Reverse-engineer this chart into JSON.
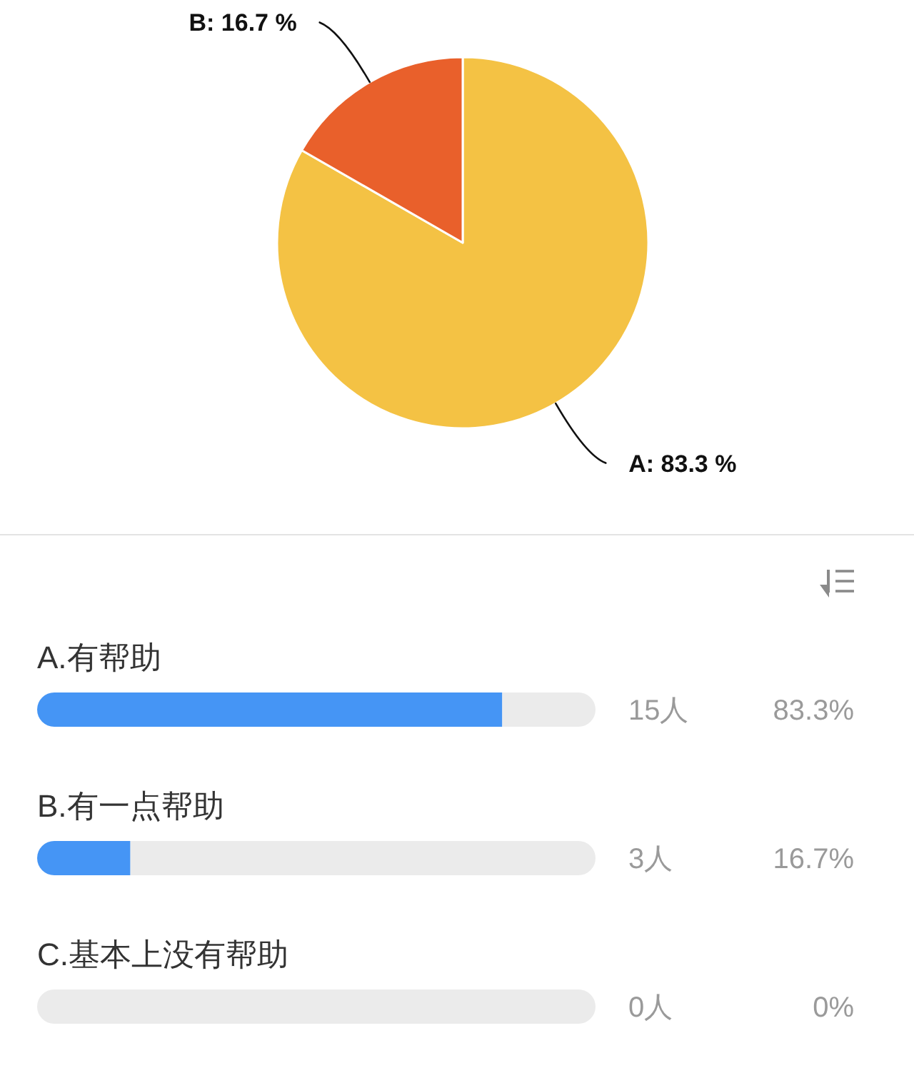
{
  "chart_data": [
    {
      "type": "pie",
      "categories": [
        "A",
        "B"
      ],
      "values": [
        83.3,
        16.7
      ],
      "colors": [
        "#f4c244",
        "#e9602b"
      ],
      "value_labels": [
        "83.3 %",
        "16.7 %"
      ]
    },
    {
      "type": "bar",
      "orientation": "horizontal",
      "stacked": true,
      "categories": [
        "A.有帮助",
        "B.有一点帮助",
        "C.基本上没有帮助"
      ],
      "xlim": [
        0,
        100
      ],
      "series": [
        {
          "color": "#4595f5",
          "values": [
            83.3,
            16.7,
            0
          ],
          "value_labels": [
            "83.3%",
            "16.7%",
            "0%"
          ]
        },
        {
          "color": "#ebebeb",
          "values": [
            16.7,
            83.3,
            100
          ]
        }
      ],
      "annotations": [
        "15人",
        "3人",
        "0人"
      ]
    }
  ]
}
